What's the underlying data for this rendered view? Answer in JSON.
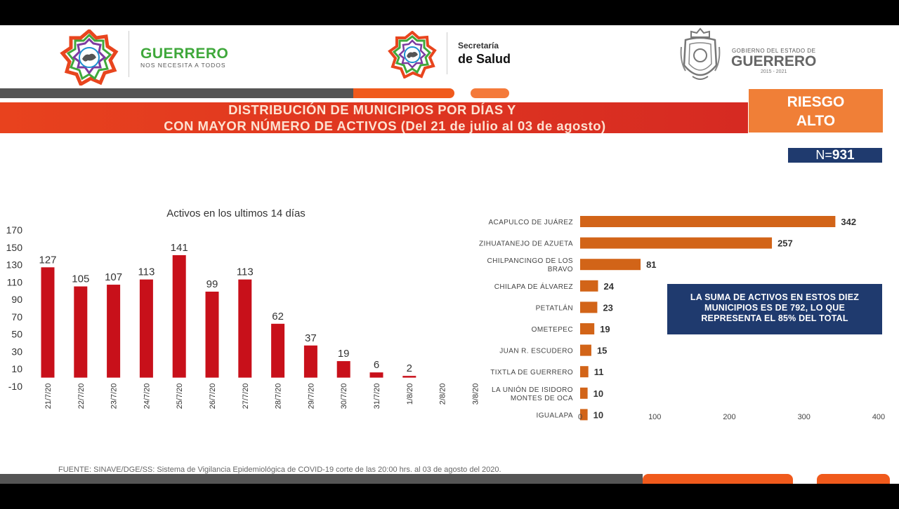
{
  "header": {
    "brand_title": "GUERRERO",
    "brand_subtitle": "NOS NECESITA A TODOS",
    "secretaria_top": "Secretaría",
    "secretaria_main": "de Salud",
    "gobierno_top": "GOBIERNO DEL ESTADO DE",
    "gobierno_main": "GUERRERO",
    "gobierno_years": "2015 - 2021"
  },
  "banner": {
    "line1": "DISTRIBUCIÓN DE MUNICIPIOS POR DÍAS Y",
    "line2": "CON MAYOR NÚMERO DE ACTIVOS (Del 21 de julio al 03 de agosto)"
  },
  "riesgo": {
    "line1": "RIESGO",
    "line2": "ALTO"
  },
  "n_box": {
    "prefix": "N=",
    "value": "931"
  },
  "summary_box": {
    "line1": "LA SUMA DE ACTIVOS EN ESTOS DIEZ",
    "line2": "MUNICIPIOS ES DE 792, LO QUE",
    "line3": "REPRESENTA EL 85% DEL TOTAL"
  },
  "footer": {
    "source": "FUENTE: SINAVE/DGE/SS: Sistema de Vigilancia Epidemiológica de COVID-19 corte de las 20:00 hrs. al 03 de agosto del 2020."
  },
  "colors": {
    "bar_red": "#c8101a",
    "bar_orange": "#d26418",
    "navy": "#1f3a6e",
    "orange": "#f07f37",
    "green": "#3fa83b"
  },
  "chart_data": [
    {
      "type": "bar",
      "title": "Activos en los ultimos 14 días",
      "categories": [
        "21/7/20",
        "22/7/20",
        "23/7/20",
        "24/7/20",
        "25/7/20",
        "26/7/20",
        "27/7/20",
        "28/7/20",
        "29/7/20",
        "30/7/20",
        "31/7/20",
        "1/8/20",
        "2/8/20",
        "3/8/20"
      ],
      "values": [
        127,
        105,
        107,
        113,
        141,
        99,
        113,
        62,
        37,
        19,
        6,
        2,
        null,
        null
      ],
      "data_labels": [
        "127",
        "105",
        "107",
        "113",
        "141",
        "99",
        "113",
        "62",
        "37",
        "19",
        "6",
        "2",
        "",
        ""
      ],
      "y_ticks": [
        170,
        150,
        130,
        110,
        90,
        70,
        50,
        30,
        10,
        -10
      ],
      "ylim": [
        -10,
        170
      ],
      "grid": false,
      "legend": "none"
    },
    {
      "type": "bar",
      "orientation": "horizontal",
      "categories": [
        "ACAPULCO DE JUÁREZ",
        "ZIHUATANEJO DE AZUETA",
        "CHILPANCINGO DE LOS BRAVO",
        "CHILAPA DE ÁLVAREZ",
        "PETATLÁN",
        "OMETEPEC",
        "JUAN R. ESCUDERO",
        "TIXTLA DE GUERRERO",
        "LA UNIÓN DE ISIDORO MONTES DE OCA",
        "IGUALAPA"
      ],
      "category_lines": [
        [
          "ACAPULCO DE JUÁREZ"
        ],
        [
          "ZIHUATANEJO DE AZUETA"
        ],
        [
          "CHILPANCINGO DE LOS",
          "BRAVO"
        ],
        [
          "CHILAPA DE ÁLVAREZ"
        ],
        [
          "PETATLÁN"
        ],
        [
          "OMETEPEC"
        ],
        [
          "JUAN R. ESCUDERO"
        ],
        [
          "TIXTLA DE GUERRERO"
        ],
        [
          "LA UNIÓN DE ISIDORO",
          "MONTES DE OCA"
        ],
        [
          "IGUALAPA"
        ]
      ],
      "values": [
        342,
        257,
        81,
        24,
        23,
        19,
        15,
        11,
        10,
        10
      ],
      "x_ticks": [
        0,
        100,
        200,
        300,
        400
      ],
      "xlim": [
        0,
        400
      ],
      "grid": false,
      "legend": "none"
    }
  ]
}
